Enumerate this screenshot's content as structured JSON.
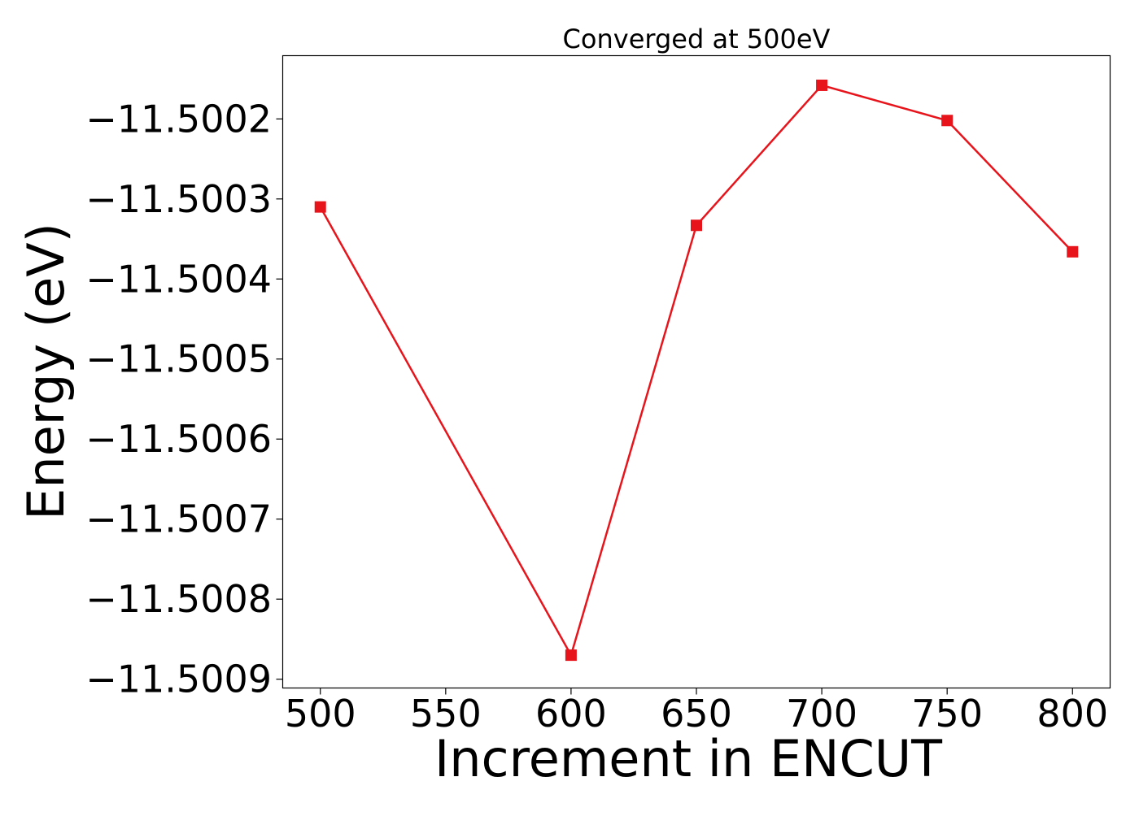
{
  "chart_data": {
    "type": "line",
    "title": "Converged at 500eV",
    "xlabel": "Increment in ENCUT",
    "ylabel": "Energy (eV)",
    "x": [
      500,
      600,
      650,
      700,
      750,
      800
    ],
    "series": [
      {
        "values": [
          -11.50031,
          -11.50087,
          -11.500333,
          -11.500158,
          -11.500202,
          -11.500366
        ],
        "color": "#e8141c",
        "marker": "square"
      }
    ],
    "xticks": [
      500,
      550,
      600,
      650,
      700,
      750,
      800
    ],
    "xtick_labels": [
      "500",
      "550",
      "600",
      "650",
      "700",
      "750",
      "800"
    ],
    "yticks": [
      -11.5002,
      -11.5003,
      -11.5004,
      -11.5005,
      -11.5006,
      -11.5007,
      -11.5008,
      -11.5009
    ],
    "ytick_labels": [
      "−11.5002",
      "−11.5003",
      "−11.5004",
      "−11.5005",
      "−11.5006",
      "−11.5007",
      "−11.5008",
      "−11.5009"
    ],
    "xlim": [
      485,
      815
    ],
    "ylim": [
      -11.500911,
      -11.500121
    ],
    "grid": false,
    "legend": "none"
  }
}
